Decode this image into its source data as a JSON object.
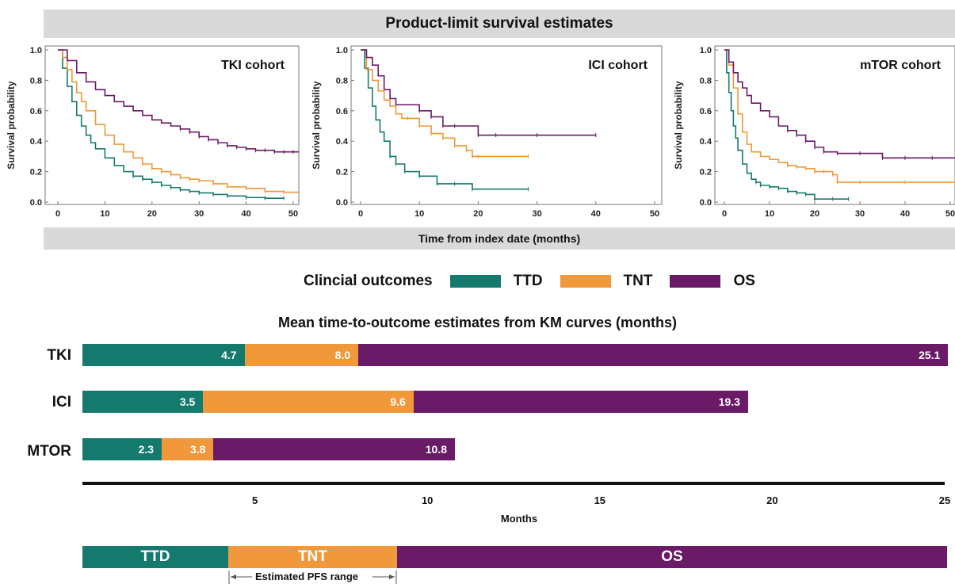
{
  "header": {
    "title": "Product-limit survival estimates",
    "x_axis_label": "Time from index date (months)"
  },
  "colors": {
    "ttd": "#157a6e",
    "tnt": "#f0983a",
    "os": "#6a1a66",
    "band": "#d9d9d9"
  },
  "km_panels": [
    {
      "label": "TKI cohort",
      "ylabel": "Survival probability",
      "xlim": [
        0,
        53
      ],
      "ylim": [
        0,
        1
      ],
      "xticks": [
        "0",
        "10",
        "20",
        "30",
        "40",
        "50"
      ],
      "yticks": [
        "0.0",
        "0.2",
        "0.4",
        "0.6",
        "0.8",
        "1.0"
      ],
      "series": [
        {
          "key": "ttd",
          "x": [
            0,
            1,
            2,
            3,
            4,
            5,
            6,
            7,
            8,
            10,
            12,
            14,
            16,
            18,
            20,
            22,
            24,
            26,
            28,
            30,
            33,
            36,
            40,
            44,
            48
          ],
          "y": [
            1,
            0.88,
            0.76,
            0.66,
            0.57,
            0.5,
            0.44,
            0.39,
            0.35,
            0.29,
            0.24,
            0.2,
            0.17,
            0.15,
            0.13,
            0.11,
            0.095,
            0.08,
            0.07,
            0.06,
            0.05,
            0.04,
            0.03,
            0.025,
            0.025
          ]
        },
        {
          "key": "tnt",
          "x": [
            0,
            1,
            2,
            3,
            4,
            5,
            6,
            8,
            10,
            12,
            14,
            16,
            18,
            20,
            22,
            24,
            26,
            28,
            30,
            33,
            36,
            40,
            44,
            48,
            52
          ],
          "y": [
            1,
            0.95,
            0.87,
            0.79,
            0.72,
            0.66,
            0.6,
            0.51,
            0.44,
            0.38,
            0.33,
            0.29,
            0.25,
            0.22,
            0.2,
            0.18,
            0.16,
            0.15,
            0.14,
            0.12,
            0.1,
            0.09,
            0.07,
            0.065,
            0.065
          ]
        },
        {
          "key": "os",
          "x": [
            0,
            2,
            4,
            6,
            8,
            10,
            12,
            14,
            16,
            18,
            20,
            22,
            24,
            26,
            28,
            30,
            32,
            34,
            36,
            38,
            40,
            42,
            44,
            46,
            48,
            50,
            53
          ],
          "y": [
            1,
            0.93,
            0.85,
            0.79,
            0.74,
            0.7,
            0.66,
            0.63,
            0.6,
            0.57,
            0.54,
            0.52,
            0.5,
            0.48,
            0.46,
            0.43,
            0.41,
            0.39,
            0.37,
            0.36,
            0.35,
            0.34,
            0.34,
            0.33,
            0.33,
            0.33,
            0.33
          ]
        }
      ]
    },
    {
      "label": "ICI cohort",
      "ylabel": "Survival probability",
      "xlim": [
        0,
        52
      ],
      "ylim": [
        0,
        1
      ],
      "xticks": [
        "0",
        "10",
        "20",
        "30",
        "40",
        "50"
      ],
      "yticks": [
        "0.0",
        "0.2",
        "0.4",
        "0.6",
        "0.8",
        "1.0"
      ],
      "series": [
        {
          "key": "ttd",
          "x": [
            0,
            0.7,
            1.3,
            2,
            2.6,
            3.3,
            4,
            5,
            6,
            7.5,
            10,
            13,
            16,
            19,
            28.5
          ],
          "y": [
            1,
            0.88,
            0.75,
            0.63,
            0.54,
            0.46,
            0.4,
            0.3,
            0.25,
            0.2,
            0.17,
            0.12,
            0.12,
            0.085,
            0.085
          ]
        },
        {
          "key": "tnt",
          "x": [
            0,
            1,
            2,
            3,
            4,
            5,
            6,
            7,
            8,
            10,
            12,
            14,
            16,
            18,
            19,
            20,
            28.5
          ],
          "y": [
            1,
            0.87,
            0.8,
            0.73,
            0.67,
            0.63,
            0.58,
            0.55,
            0.55,
            0.5,
            0.45,
            0.42,
            0.37,
            0.34,
            0.3,
            0.3,
            0.3
          ]
        },
        {
          "key": "os",
          "x": [
            0,
            1,
            2,
            3,
            4,
            5,
            6,
            8,
            10,
            12,
            14,
            16,
            20,
            23,
            30,
            40
          ],
          "y": [
            1,
            0.95,
            0.9,
            0.83,
            0.74,
            0.68,
            0.64,
            0.64,
            0.6,
            0.56,
            0.5,
            0.5,
            0.44,
            0.44,
            0.44,
            0.44
          ]
        }
      ]
    },
    {
      "label": "mTOR cohort",
      "ylabel": "Survival probability",
      "xlim": [
        0,
        52
      ],
      "ylim": [
        0,
        1
      ],
      "xticks": [
        "0",
        "10",
        "20",
        "30",
        "40",
        "50"
      ],
      "yticks": [
        "0.0",
        "0.2",
        "0.4",
        "0.6",
        "0.8",
        "1.0"
      ],
      "series": [
        {
          "key": "ttd",
          "x": [
            0,
            0.5,
            1,
            1.5,
            2,
            2.5,
            3,
            4,
            5,
            6,
            7,
            8,
            10,
            12,
            14,
            16,
            18,
            20,
            24,
            27.5
          ],
          "y": [
            1,
            0.85,
            0.72,
            0.6,
            0.5,
            0.42,
            0.34,
            0.25,
            0.19,
            0.15,
            0.13,
            0.11,
            0.1,
            0.09,
            0.07,
            0.06,
            0.05,
            0.02,
            0.02,
            0.02
          ]
        },
        {
          "key": "tnt",
          "x": [
            0,
            1,
            2,
            3,
            4,
            5,
            6,
            8,
            10,
            12,
            14,
            16,
            18,
            20,
            22,
            24,
            25,
            30,
            40,
            52
          ],
          "y": [
            1,
            0.9,
            0.75,
            0.58,
            0.46,
            0.38,
            0.33,
            0.3,
            0.28,
            0.26,
            0.24,
            0.23,
            0.22,
            0.2,
            0.2,
            0.18,
            0.13,
            0.13,
            0.13,
            0.13
          ]
        },
        {
          "key": "os",
          "x": [
            0,
            1,
            2,
            3,
            4,
            5,
            6,
            8,
            10,
            12,
            14,
            16,
            18,
            20,
            22,
            25,
            30,
            35,
            40,
            46,
            52
          ],
          "y": [
            1,
            0.92,
            0.85,
            0.79,
            0.75,
            0.7,
            0.65,
            0.6,
            0.56,
            0.5,
            0.47,
            0.44,
            0.4,
            0.36,
            0.33,
            0.32,
            0.32,
            0.29,
            0.29,
            0.29,
            0.29
          ]
        }
      ]
    }
  ],
  "legend": {
    "title": "Clincial outcomes",
    "items": [
      {
        "key": "ttd",
        "label": "TTD"
      },
      {
        "key": "tnt",
        "label": "TNT"
      },
      {
        "key": "os",
        "label": "OS"
      }
    ]
  },
  "chart_data": {
    "type": "bar",
    "title": "Mean time-to-outcome estimates from KM curves (months)",
    "categories": [
      "TKI",
      "ICI",
      "MTOR"
    ],
    "series": [
      {
        "name": "TTD",
        "key": "ttd",
        "values": [
          4.7,
          3.5,
          2.3
        ],
        "labels": [
          "4.7",
          "3.5",
          "2.3"
        ]
      },
      {
        "name": "TNT",
        "key": "tnt",
        "values": [
          8.0,
          9.6,
          3.8
        ],
        "labels": [
          "8.0",
          "9.6",
          "3.8"
        ]
      },
      {
        "name": "OS",
        "key": "os",
        "values": [
          25.1,
          19.3,
          10.8
        ],
        "labels": [
          "25.1",
          "19.3",
          "10.8"
        ]
      }
    ],
    "xlabel": "Months",
    "xticks": [
      "5",
      "10",
      "15",
      "20",
      "25"
    ],
    "xlim": [
      0,
      25
    ]
  },
  "schematic": {
    "segments": [
      {
        "key": "ttd",
        "label": "TTD"
      },
      {
        "key": "tnt",
        "label": "TNT"
      },
      {
        "key": "os",
        "label": "OS"
      }
    ],
    "pfs_label": "Estimated PFS range"
  }
}
